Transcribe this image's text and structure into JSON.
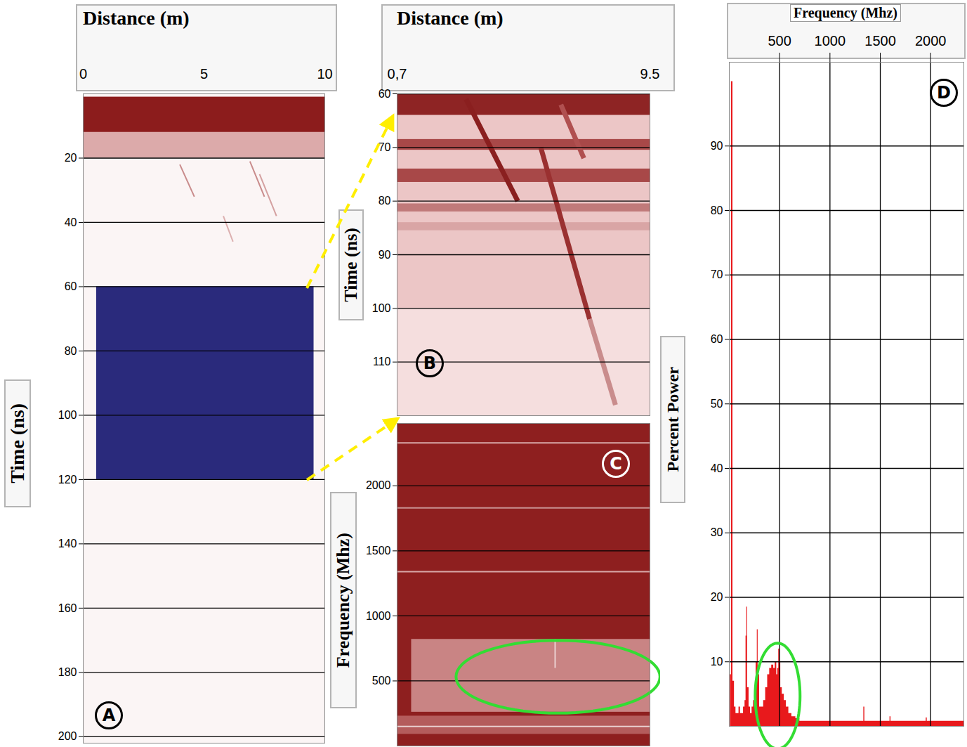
{
  "chart_data": [
    {
      "panel": "A",
      "type": "radargram",
      "x_label": "Distance (m)",
      "y_label": "Time (ns)",
      "xlim": [
        0,
        10
      ],
      "xticks": [
        0,
        5,
        10
      ],
      "ylim": [
        0,
        202
      ],
      "yticks": [
        20,
        40,
        60,
        80,
        100,
        120,
        140,
        160,
        180,
        200
      ],
      "grid": "y",
      "bands": [
        {
          "x": [
            0,
            10
          ],
          "y": [
            0,
            202
          ],
          "color": "#fbf5f5"
        },
        {
          "x": [
            0,
            10
          ],
          "y": [
            1,
            12
          ],
          "color": "#8c1c1c"
        },
        {
          "x": [
            0,
            10
          ],
          "y": [
            12,
            20
          ],
          "color": "#dcaaaa"
        },
        {
          "x": [
            0.55,
            9.55
          ],
          "y": [
            60,
            120
          ],
          "color": "#2a2a7c"
        }
      ],
      "reflections": [
        {
          "x": [
            4.0,
            4.6
          ],
          "y": [
            22,
            32
          ],
          "color": "#c98c8c"
        },
        {
          "x": [
            6.9,
            7.5
          ],
          "y": [
            21,
            32
          ],
          "color": "#c98c8c"
        },
        {
          "x": [
            7.3,
            8.0
          ],
          "y": [
            25,
            38
          ],
          "color": "#d4a0a0"
        },
        {
          "x": [
            5.8,
            6.2
          ],
          "y": [
            38,
            46
          ],
          "color": "#dcb0b0"
        }
      ]
    },
    {
      "panel": "B",
      "type": "radargram",
      "x_label": "Distance (m)",
      "y_label": "Time (ns)",
      "xlim": [
        0.7,
        9.5
      ],
      "xticks": [
        {
          "value": 0.7,
          "label": "0,7"
        },
        9.5
      ],
      "ylim": [
        60,
        120
      ],
      "yticks": [
        60,
        70,
        80,
        90,
        100,
        110
      ],
      "grid": "y",
      "bands": [
        {
          "x": [
            0.7,
            9.5
          ],
          "y": [
            60,
            120
          ],
          "color": "#f5dede"
        },
        {
          "x": [
            0.7,
            9.5
          ],
          "y": [
            64,
            100
          ],
          "color": "#ecc6c6"
        },
        {
          "x": [
            0.7,
            9.5
          ],
          "y": [
            60,
            64
          ],
          "color": "#8e2424"
        },
        {
          "x": [
            0.7,
            9.5
          ],
          "y": [
            68.5,
            70.5
          ],
          "color": "#a84848"
        },
        {
          "x": [
            0.7,
            9.5
          ],
          "y": [
            74,
            76.5
          ],
          "color": "#a84848"
        },
        {
          "x": [
            0.7,
            9.5
          ],
          "y": [
            80.5,
            82
          ],
          "color": "#c07a7a"
        },
        {
          "x": [
            0.7,
            9.5
          ],
          "y": [
            84,
            85.5
          ],
          "color": "#d9a5a5"
        }
      ],
      "reflections": [
        {
          "x": [
            3.1,
            4.9
          ],
          "y": [
            61,
            80
          ],
          "color": "#8a1f1f"
        },
        {
          "x": [
            6.4,
            7.2
          ],
          "y": [
            62,
            72
          ],
          "color": "#b05050"
        },
        {
          "x": [
            5.7,
            7.4
          ],
          "y": [
            70,
            102
          ],
          "color": "#9a3030"
        },
        {
          "x": [
            7.4,
            8.3
          ],
          "y": [
            102,
            118
          ],
          "color": "#c98c8c"
        }
      ]
    },
    {
      "panel": "C",
      "type": "spectrogram",
      "y_label": "Frequency (Mhz)",
      "xlim": [
        0.7,
        9.5
      ],
      "ylim": [
        0,
        2480
      ],
      "yticks": [
        500,
        1000,
        1500,
        2000
      ],
      "grid": "y",
      "tick_labels": "y",
      "bands": [
        {
          "x": [
            0.7,
            9.5
          ],
          "y": [
            0,
            2480
          ],
          "color": "#8e1f1f"
        },
        {
          "x": [
            1.2,
            9.5
          ],
          "y": [
            260,
            820
          ],
          "color": "#c98484"
        },
        {
          "x": [
            0.7,
            9.5
          ],
          "y": [
            90,
            230
          ],
          "color": "#b45c5c"
        }
      ],
      "reflections": [
        {
          "x": [
            0.7,
            9.5
          ],
          "y": [
            2330,
            2330
          ],
          "color": "#d8a8a8"
        },
        {
          "x": [
            0.7,
            9.5
          ],
          "y": [
            1830,
            1830
          ],
          "color": "#c89090"
        },
        {
          "x": [
            0.7,
            9.5
          ],
          "y": [
            1340,
            1340
          ],
          "color": "#d8a8a8"
        },
        {
          "x": [
            0.7,
            9.5
          ],
          "y": [
            150,
            150
          ],
          "color": "#ead0d0"
        },
        {
          "x": [
            6.2,
            6.2
          ],
          "y": [
            600,
            820
          ],
          "color": "#ead0d0"
        }
      ],
      "highlight": {
        "center": [
          6.3,
          532
        ],
        "radius": [
          3.55,
          280
        ],
        "color": "#33dd33"
      }
    },
    {
      "panel": "D",
      "type": "area",
      "x_label": "Frequency (Mhz)",
      "y_label": "Percent Power",
      "xlim": [
        0,
        2330
      ],
      "xticks": [
        500,
        1000,
        1500,
        2000
      ],
      "ylim": [
        0,
        103
      ],
      "yticks": [
        10,
        20,
        30,
        40,
        50,
        60,
        70,
        80,
        90
      ],
      "grid": true,
      "color": "#e8191c",
      "x": [
        10,
        20,
        35,
        50,
        65,
        80,
        95,
        110,
        125,
        140,
        155,
        165,
        172,
        180,
        195,
        210,
        225,
        240,
        255,
        265,
        277,
        285,
        300,
        320,
        340,
        360,
        380,
        400,
        420,
        440,
        455,
        470,
        480,
        490,
        500,
        510,
        525,
        545,
        565,
        590,
        620,
        660,
        700,
        1325,
        1335,
        1345,
        1595,
        1605,
        1955,
        1965,
        2330
      ],
      "values": [
        8,
        100,
        7,
        3,
        2,
        2,
        3,
        2,
        2,
        3,
        4,
        14,
        18.5,
        6,
        3,
        2,
        3,
        4,
        5,
        10,
        15,
        8,
        3,
        3,
        4,
        6,
        8,
        9,
        9.5,
        9,
        10,
        8,
        9,
        12,
        10,
        6,
        5,
        4,
        3,
        2,
        1.5,
        1.2,
        0.8,
        0.8,
        3,
        0.8,
        1.5,
        0.8,
        1.3,
        0.8,
        0.8
      ],
      "highlight": {
        "center": [
          480,
          4.7
        ],
        "radius": [
          223,
          8.2
        ],
        "color": "#33dd33"
      }
    }
  ]
}
